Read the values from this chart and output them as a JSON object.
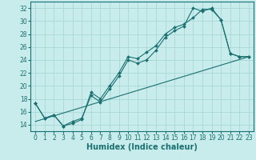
{
  "xlabel": "Humidex (Indice chaleur)",
  "bg_color": "#c8ecec",
  "line_color": "#1a7070",
  "grid_color": "#a8d8d8",
  "xlim": [
    -0.5,
    23.5
  ],
  "ylim": [
    13.0,
    33.0
  ],
  "yticks": [
    14,
    16,
    18,
    20,
    22,
    24,
    26,
    28,
    30,
    32
  ],
  "xticks": [
    0,
    1,
    2,
    3,
    4,
    5,
    6,
    7,
    8,
    9,
    10,
    11,
    12,
    13,
    14,
    15,
    16,
    17,
    18,
    19,
    20,
    21,
    22,
    23
  ],
  "line1_x": [
    0,
    1,
    2,
    3,
    4,
    5,
    6,
    7,
    8,
    9,
    10,
    11,
    12,
    13,
    14,
    15,
    16,
    17,
    18,
    19,
    20,
    21,
    22,
    23
  ],
  "line1_y": [
    17.3,
    15.0,
    15.5,
    13.8,
    14.5,
    15.0,
    18.5,
    17.5,
    19.5,
    21.5,
    24.0,
    23.5,
    24.0,
    25.5,
    27.5,
    28.5,
    29.2,
    32.0,
    31.5,
    32.0,
    30.2,
    25.0,
    24.5,
    24.5
  ],
  "line2_x": [
    0,
    1,
    2,
    3,
    4,
    5,
    6,
    7,
    8,
    9,
    10,
    11,
    12,
    13,
    14,
    15,
    16,
    17,
    18,
    19,
    20,
    21,
    22,
    23
  ],
  "line2_y": [
    17.3,
    15.0,
    15.5,
    13.8,
    14.2,
    14.8,
    19.0,
    18.0,
    20.0,
    22.0,
    24.5,
    24.2,
    25.2,
    26.2,
    28.0,
    29.0,
    29.5,
    30.5,
    31.8,
    31.8,
    30.2,
    25.0,
    24.5,
    24.5
  ],
  "line3_x": [
    0,
    23
  ],
  "line3_y": [
    14.5,
    24.5
  ],
  "xlabel_fontsize": 7,
  "tick_fontsize": 5.5
}
